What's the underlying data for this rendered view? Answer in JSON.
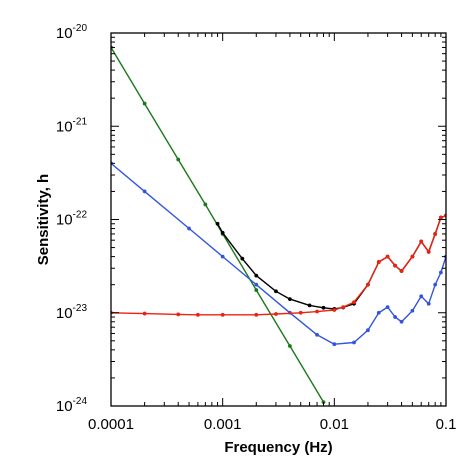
{
  "chart_data": {
    "type": "line",
    "title": "",
    "xlabel": "Frequency (Hz)",
    "ylabel": "Sensitivity, h",
    "x_scale": "log",
    "y_scale": "log",
    "xlim": [
      0.0001,
      0.1
    ],
    "ylim": [
      1e-24,
      1e-20
    ],
    "grid": false,
    "x_ticks": [
      {
        "value": 0.0001,
        "label": "0.0001"
      },
      {
        "value": 0.001,
        "label": "0.001"
      },
      {
        "value": 0.01,
        "label": "0.01"
      },
      {
        "value": 0.1,
        "label": "0.1"
      }
    ],
    "y_ticks": [
      {
        "value": 1e-24,
        "base": "10",
        "exp": "-24"
      },
      {
        "value": 1e-23,
        "base": "10",
        "exp": "-23"
      },
      {
        "value": 1e-22,
        "base": "10",
        "exp": "-22"
      },
      {
        "value": 1e-21,
        "base": "10",
        "exp": "-21"
      },
      {
        "value": 1e-20,
        "base": "10",
        "exp": "-20"
      }
    ],
    "series": [
      {
        "color": "#1a7a1a",
        "x": [
          0.0001,
          0.0002,
          0.0004,
          0.0007,
          0.001,
          0.002,
          0.004,
          0.008
        ],
        "y": [
          7e-21,
          1.75e-21,
          4.4e-22,
          1.45e-22,
          7e-23,
          1.75e-23,
          4.4e-24,
          1.1e-24
        ]
      },
      {
        "color": "#3355dd",
        "x": [
          0.0001,
          0.0002,
          0.0005,
          0.001,
          0.002,
          0.004,
          0.007,
          0.01,
          0.015,
          0.02,
          0.025,
          0.03,
          0.035,
          0.04,
          0.05,
          0.06,
          0.07,
          0.08,
          0.09,
          0.1
        ],
        "y": [
          4e-22,
          2e-22,
          8e-23,
          4e-23,
          2e-23,
          1e-23,
          5.8e-24,
          4.6e-24,
          4.8e-24,
          6.5e-24,
          1e-23,
          1.15e-23,
          9e-24,
          8e-24,
          1.05e-23,
          1.5e-23,
          1.25e-23,
          2e-23,
          2.7e-23,
          4e-23
        ]
      },
      {
        "color": "#000000",
        "x": [
          0.0009,
          0.001,
          0.0015,
          0.002,
          0.003,
          0.004,
          0.006,
          0.008,
          0.01,
          0.012,
          0.015,
          0.02,
          0.025,
          0.03,
          0.035,
          0.04,
          0.05,
          0.06,
          0.07,
          0.08,
          0.09,
          0.1
        ],
        "y": [
          9e-23,
          7.2e-23,
          3.8e-23,
          2.5e-23,
          1.7e-23,
          1.4e-23,
          1.2e-23,
          1.13e-23,
          1.1e-23,
          1.14e-23,
          1.25e-23,
          2e-23,
          3.5e-23,
          4e-23,
          3.2e-23,
          2.8e-23,
          4e-23,
          5.8e-23,
          4.5e-23,
          7e-23,
          1.05e-22,
          1.1e-22
        ]
      },
      {
        "color": "#ee2211",
        "x": [
          0.0001,
          0.0002,
          0.0004,
          0.0006,
          0.001,
          0.002,
          0.003,
          0.005,
          0.007,
          0.01,
          0.012,
          0.015,
          0.02,
          0.025,
          0.03,
          0.035,
          0.04,
          0.05,
          0.06,
          0.07,
          0.08,
          0.09,
          0.1
        ],
        "y": [
          1e-23,
          9.8e-24,
          9.6e-24,
          9.5e-24,
          9.5e-24,
          9.5e-24,
          9.7e-24,
          1e-23,
          1.03e-23,
          1.07e-23,
          1.15e-23,
          1.3e-23,
          2e-23,
          3.5e-23,
          4e-23,
          3.2e-23,
          2.8e-23,
          4e-23,
          5.8e-23,
          4.5e-23,
          7e-23,
          1.05e-22,
          1.1e-22
        ]
      }
    ]
  }
}
